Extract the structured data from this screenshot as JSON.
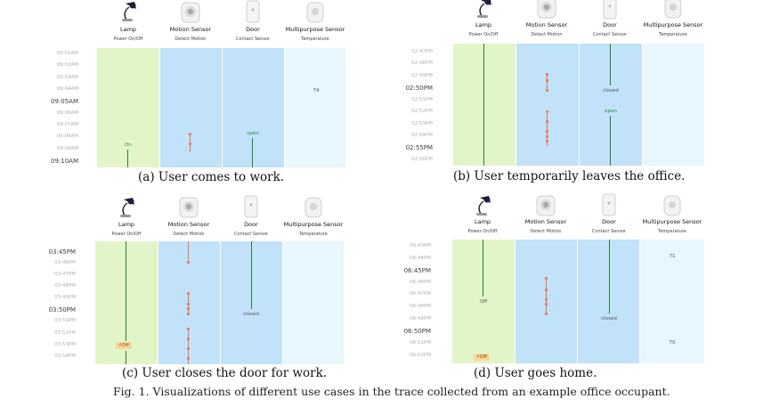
{
  "devices": [
    {
      "name": "Lamp",
      "sub": "Power On/Off",
      "icon": "lamp-icon"
    },
    {
      "name": "Motion Sensor",
      "sub": "Detect Motion",
      "icon": "motion-sensor-icon"
    },
    {
      "name": "Door",
      "sub": "Contact Sensor",
      "icon": "door-sensor-icon"
    },
    {
      "name": "Multipurpose Sensor",
      "sub": "Temperature",
      "icon": "multipurpose-sensor-icon"
    }
  ],
  "colors": {
    "lamp_col": "#e2f5c9",
    "motion_col": "#c1e2f9",
    "door_col": "#c1e2f9",
    "multi_col": "#e8f6fd",
    "event_line": "#2e7d32",
    "motion_marker": "#ef7350"
  },
  "panels": [
    {
      "caption": "(a) User comes to work.",
      "times": [
        "09:01AM",
        "09:02AM",
        "09:03AM",
        "09:04AM",
        "09:05AM",
        "09:06AM",
        "09:07AM",
        "09:08AM",
        "09:09AM",
        "09:10AM"
      ],
      "labels": {
        "lamp": "On",
        "door": "open",
        "temp": "74"
      }
    },
    {
      "caption": "(b) User temporarily leaves the office.",
      "times": [
        "02:47PM",
        "02:48PM",
        "02:49PM",
        "02:50PM",
        "02:51PM",
        "02:52PM",
        "02:53PM",
        "02:54PM",
        "02:55PM",
        "02:56PM"
      ],
      "labels": {
        "door_closed": "closed",
        "door_open": "open"
      }
    },
    {
      "caption": "(c) User closes the door for work.",
      "times": [
        "03:45PM",
        "03:46PM",
        "03:47PM",
        "03:48PM",
        "03:49PM",
        "03:50PM",
        "03:51PM",
        "03:52PM",
        "03:53PM",
        "03:54PM"
      ],
      "labels": {
        "lamp": "Off",
        "door": "closed"
      }
    },
    {
      "caption": "(d) User goes home.",
      "times": [
        "06:43PM",
        "06:44PM",
        "06:45PM",
        "06:46PM",
        "06:47PM",
        "06:48PM",
        "06:49PM",
        "06:50PM",
        "06:51PM",
        "06:52PM"
      ],
      "labels": {
        "lamp_mid": "Off",
        "lamp_badge": "Off",
        "door": "closed",
        "temp_top": "71",
        "temp_bottom": "70"
      }
    }
  ],
  "figure_caption": "Fig. 1.  Visualizations of different use cases in the trace collected from an example office occupant."
}
